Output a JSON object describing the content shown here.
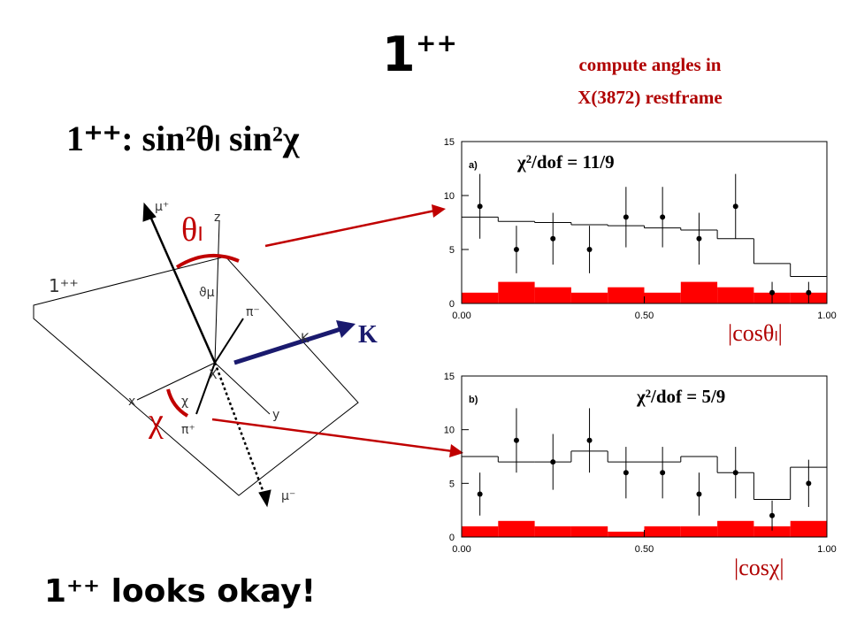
{
  "title": {
    "base": "1",
    "sup": "++"
  },
  "formula": "1⁺⁺: sin²θₗ sin²χ",
  "note": [
    "compute angles in",
    "X(3872) restframe"
  ],
  "conclusion": "1⁺⁺ looks okay!",
  "diagram": {
    "theta_label": "θₗ",
    "chi_label": "χ",
    "k_label": "K",
    "labels": {
      "mu_plus": "μ⁺",
      "z": "z",
      "plane": "1⁺⁺",
      "theta_mu": "ϑμ",
      "pi_minus": "π⁻",
      "k_small": "K",
      "x_center": "X",
      "x_axis": "x",
      "y_axis": "y",
      "pi_plus": "π⁺",
      "mu_minus": "μ⁻",
      "chi_small": "χ"
    }
  },
  "chart_data": [
    {
      "type": "histogram",
      "panel_label": "a)",
      "annotation": "χ²/dof = 11/9",
      "xlabel": "|cosθₗ|",
      "bins": [
        0,
        0.1,
        0.2,
        0.3,
        0.4,
        0.5,
        0.6,
        0.7,
        0.8,
        0.9,
        1.0
      ],
      "x": [
        0.05,
        0.15,
        0.25,
        0.35,
        0.45,
        0.55,
        0.65,
        0.75,
        0.85,
        0.95
      ],
      "data": {
        "color": "#000000",
        "values": [
          9,
          5,
          6,
          5,
          8,
          8,
          6,
          9,
          1,
          1
        ],
        "errors": [
          3,
          2.2,
          2.4,
          2.2,
          2.8,
          2.8,
          2.4,
          3,
          1,
          1
        ]
      },
      "expected": {
        "color": "#000000",
        "values": [
          8,
          7.6,
          7.5,
          7.3,
          7.2,
          7,
          6.8,
          6,
          3.7,
          2.5
        ]
      },
      "background": {
        "color": "#ff0000",
        "values": [
          1,
          2,
          1.5,
          1,
          1.5,
          1,
          2,
          1.5,
          1,
          1
        ]
      },
      "xlim": [
        0,
        1
      ],
      "xticks": [
        {
          "value": 0,
          "label": "0.00"
        },
        {
          "value": 0.5,
          "label": "0.50"
        },
        {
          "value": 1,
          "label": "1.00"
        }
      ],
      "ylim": [
        0,
        15
      ],
      "yticks": [
        0,
        5,
        10,
        15
      ]
    },
    {
      "type": "histogram",
      "panel_label": "b)",
      "annotation": "χ²/dof = 5/9",
      "xlabel": "|cosχ|",
      "bins": [
        0,
        0.1,
        0.2,
        0.3,
        0.4,
        0.5,
        0.6,
        0.7,
        0.8,
        0.9,
        1.0
      ],
      "x": [
        0.05,
        0.15,
        0.25,
        0.35,
        0.45,
        0.55,
        0.65,
        0.75,
        0.85,
        0.95
      ],
      "data": {
        "color": "#000000",
        "values": [
          4,
          9,
          7,
          9,
          6,
          6,
          4,
          6,
          2,
          5
        ],
        "errors": [
          2,
          3,
          2.6,
          3,
          2.4,
          2.4,
          2,
          2.4,
          1.4,
          2.2
        ]
      },
      "expected": {
        "color": "#000000",
        "values": [
          7.5,
          7,
          7,
          8,
          7,
          7,
          7.5,
          6,
          3.5,
          6.5
        ]
      },
      "background": {
        "color": "#ff0000",
        "values": [
          1,
          1.5,
          1,
          1,
          0.5,
          1,
          1,
          1.5,
          1,
          1.5
        ]
      },
      "xlim": [
        0,
        1
      ],
      "xticks": [
        {
          "value": 0,
          "label": "0.00"
        },
        {
          "value": 0.5,
          "label": "0.50"
        },
        {
          "value": 1,
          "label": "1.00"
        }
      ],
      "ylim": [
        0,
        15
      ],
      "yticks": [
        0,
        5,
        10,
        15
      ]
    }
  ]
}
